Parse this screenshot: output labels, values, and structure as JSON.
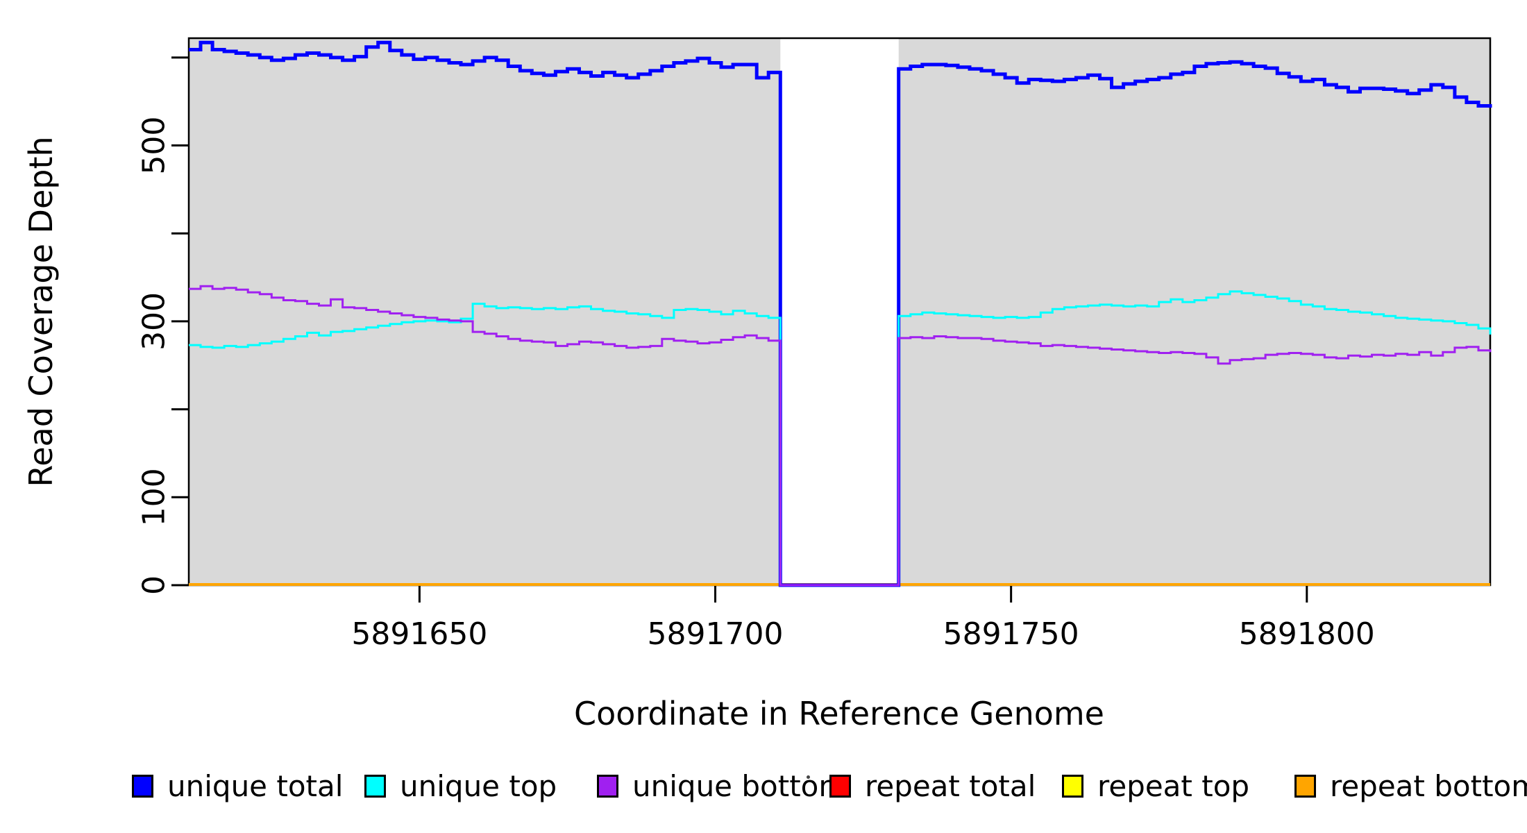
{
  "figure": {
    "background": "#FFFFFF",
    "plot_background": "#D9D9D9",
    "box_color": "#000000",
    "tick_color": "#000000"
  },
  "chart_data": {
    "type": "line",
    "subtype": "step-coverage",
    "title": "",
    "xlabel": "Coordinate in Reference Genome",
    "ylabel": "Read Coverage Depth",
    "xlim": [
      5891611,
      5891831
    ],
    "ylim": [
      0,
      622
    ],
    "grid": "off",
    "legend_position": "bottom",
    "x_ticks": [
      {
        "value": 5891650,
        "label": "5891650"
      },
      {
        "value": 5891700,
        "label": "5891700"
      },
      {
        "value": 5891750,
        "label": "5891750"
      },
      {
        "value": 5891800,
        "label": "5891800"
      }
    ],
    "y_ticks": [
      {
        "value": 0,
        "label": "0"
      },
      {
        "value": 100,
        "label": "100"
      },
      {
        "value": 200,
        "label": ""
      },
      {
        "value": 300,
        "label": "300"
      },
      {
        "value": 400,
        "label": ""
      },
      {
        "value": 500,
        "label": "500"
      },
      {
        "value": 600,
        "label": ""
      }
    ],
    "gap_region": {
      "x_start": 5891711,
      "x_end": 5891731
    },
    "x_start": 5891611,
    "x_step": 2,
    "series": [
      {
        "name": "unique total",
        "color": "#0000FF",
        "line_width": 5,
        "values": [
          609,
          617,
          609,
          607,
          605,
          603,
          600,
          597,
          599,
          603,
          605,
          603,
          600,
          597,
          601,
          612,
          617,
          608,
          603,
          598,
          600,
          597,
          594,
          592,
          596,
          600,
          597,
          590,
          585,
          582,
          580,
          584,
          587,
          583,
          579,
          583,
          580,
          577,
          581,
          585,
          590,
          594,
          596,
          599,
          594,
          589,
          592,
          592,
          577,
          583,
          0,
          0,
          0,
          0,
          0,
          0,
          0,
          0,
          0,
          0,
          587,
          590,
          592,
          592,
          591,
          589,
          587,
          585,
          581,
          577,
          571,
          575,
          574,
          573,
          575,
          577,
          580,
          576,
          566,
          570,
          573,
          575,
          577,
          581,
          583,
          590,
          593,
          594,
          595,
          593,
          590,
          588,
          582,
          578,
          573,
          575,
          569,
          566,
          561,
          565,
          565,
          564,
          562,
          559,
          563,
          569,
          566,
          555,
          549,
          545,
          543
        ]
      },
      {
        "name": "unique top",
        "color": "#00FFFF",
        "line_width": 3,
        "values": [
          273,
          271,
          270,
          272,
          271,
          273,
          275,
          277,
          280,
          283,
          287,
          284,
          288,
          289,
          291,
          293,
          295,
          297,
          299,
          300,
          301,
          300,
          299,
          303,
          320,
          317,
          315,
          316,
          315,
          314,
          315,
          314,
          316,
          317,
          314,
          312,
          311,
          309,
          308,
          306,
          304,
          313,
          314,
          313,
          311,
          308,
          312,
          309,
          306,
          304,
          0,
          0,
          0,
          0,
          0,
          0,
          0,
          0,
          0,
          0,
          306,
          308,
          310,
          309,
          308,
          307,
          306,
          305,
          304,
          305,
          304,
          305,
          310,
          314,
          316,
          317,
          318,
          319,
          318,
          317,
          318,
          317,
          322,
          325,
          322,
          324,
          327,
          331,
          334,
          332,
          330,
          328,
          326,
          323,
          319,
          317,
          314,
          313,
          311,
          310,
          308,
          306,
          304,
          303,
          302,
          301,
          300,
          298,
          296,
          292,
          285
        ]
      },
      {
        "name": "unique bottom",
        "color": "#A020F0",
        "line_width": 3,
        "values": [
          337,
          340,
          337,
          338,
          336,
          333,
          331,
          327,
          324,
          323,
          320,
          318,
          325,
          316,
          315,
          313,
          311,
          309,
          307,
          305,
          304,
          302,
          301,
          300,
          288,
          286,
          283,
          280,
          278,
          277,
          276,
          272,
          274,
          277,
          276,
          274,
          272,
          270,
          271,
          272,
          280,
          278,
          277,
          275,
          276,
          279,
          282,
          284,
          281,
          278,
          0,
          0,
          0,
          0,
          0,
          0,
          0,
          0,
          0,
          0,
          281,
          282,
          281,
          283,
          282,
          281,
          281,
          280,
          278,
          277,
          276,
          275,
          272,
          273,
          272,
          271,
          270,
          269,
          268,
          267,
          266,
          265,
          264,
          265,
          264,
          263,
          259,
          252,
          256,
          257,
          258,
          262,
          263,
          264,
          263,
          262,
          259,
          258,
          261,
          260,
          262,
          261,
          263,
          262,
          265,
          261,
          265,
          270,
          271,
          267,
          265
        ]
      },
      {
        "name": "repeat total",
        "color": "#FF0000",
        "line_width": 3,
        "constant": 0
      },
      {
        "name": "repeat top",
        "color": "#FFFF00",
        "line_width": 3,
        "constant": 0
      },
      {
        "name": "repeat bottom",
        "color": "#FFA500",
        "line_width": 4,
        "constant": 0
      }
    ]
  },
  "legend": {
    "items": [
      {
        "label": "unique total",
        "color": "#0000FF"
      },
      {
        "label": "unique top",
        "color": "#00FFFF"
      },
      {
        "label": "unique bottom",
        "color": "#A020F0"
      },
      {
        "label": "repeat total",
        "color": "#FF0000"
      },
      {
        "label": "repeat top",
        "color": "#FFFF00"
      },
      {
        "label": "repeat bottom",
        "color": "#FFA500"
      }
    ],
    "stray_dot": true
  }
}
